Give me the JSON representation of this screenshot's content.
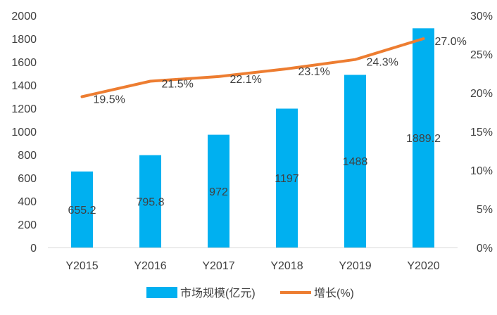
{
  "chart_data": {
    "type": "bar",
    "categories": [
      "Y2015",
      "Y2016",
      "Y2017",
      "Y2018",
      "Y2019",
      "Y2020"
    ],
    "series": [
      {
        "name": "市场规模(亿元)",
        "type": "bar",
        "axis": "left",
        "values": [
          655.2,
          795.8,
          972,
          1197,
          1488,
          1889.2
        ],
        "labels": [
          "655.2",
          "795.8",
          "972",
          "1197",
          "1488",
          "1889.2"
        ],
        "color": "#00B0F0"
      },
      {
        "name": "增长(%)",
        "type": "line",
        "axis": "right",
        "values": [
          19.5,
          21.5,
          22.1,
          23.1,
          24.3,
          27.0
        ],
        "labels": [
          "19.5%",
          "21.5%",
          "22.1%",
          "23.1%",
          "24.3%",
          "27.0%"
        ],
        "color": "#ED7D31"
      }
    ],
    "y_left": {
      "range": [
        0,
        2000
      ],
      "ticks": [
        0,
        200,
        400,
        600,
        800,
        1000,
        1200,
        1400,
        1600,
        1800,
        2000
      ],
      "tick_labels": [
        "0",
        "200",
        "400",
        "600",
        "800",
        "1000",
        "1200",
        "1400",
        "1600",
        "1800",
        "2000"
      ]
    },
    "y_right": {
      "range": [
        0,
        30
      ],
      "ticks": [
        0,
        5,
        10,
        15,
        20,
        25,
        30
      ],
      "tick_labels": [
        "0%",
        "5%",
        "10%",
        "15%",
        "20%",
        "25%",
        "30%"
      ]
    },
    "grid": false,
    "legend": "bottom"
  }
}
